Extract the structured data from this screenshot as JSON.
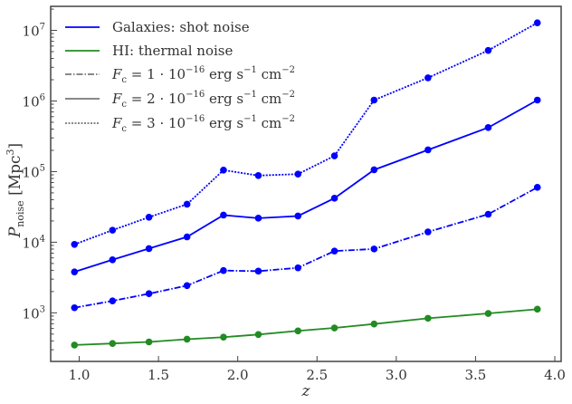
{
  "chart_data": {
    "type": "line",
    "xlabel": "z",
    "ylabel": {
      "main": "P",
      "sub": "noise",
      "unit": " [Mpc",
      "unit_exp": "3",
      "close": "]"
    },
    "xlim": [
      0.82,
      4.04
    ],
    "ylim": [
      205,
      21900000
    ],
    "yscale": "log",
    "grid": false,
    "legend_placement": "top-left",
    "x_ticks": [
      "1.0",
      "1.5",
      "2.0",
      "2.5",
      "3.0",
      "3.5",
      "4.0"
    ],
    "x_tick_values": [
      1.0,
      1.5,
      2.0,
      2.5,
      3.0,
      3.5,
      4.0
    ],
    "y_ticks": [
      {
        "base": "10",
        "exp": "3"
      },
      {
        "base": "10",
        "exp": "4"
      },
      {
        "base": "10",
        "exp": "5"
      },
      {
        "base": "10",
        "exp": "6"
      },
      {
        "base": "10",
        "exp": "7"
      }
    ],
    "y_tick_values": [
      1000,
      10000,
      100000,
      1000000,
      10000000
    ],
    "x": [
      0.97,
      1.21,
      1.44,
      1.68,
      1.91,
      2.13,
      2.38,
      2.61,
      2.86,
      3.2,
      3.58,
      3.89
    ],
    "series": [
      {
        "id": "hi",
        "color": "#228b22",
        "style": "solid",
        "values": [
          350,
          368,
          387,
          423,
          452,
          493,
          555,
          611,
          695,
          837,
          980,
          1125
        ]
      },
      {
        "id": "f1",
        "color": "#0000ff",
        "style": "dashdot",
        "values": [
          1180,
          1476,
          1866,
          2430,
          3970,
          3890,
          4340,
          7500,
          8020,
          14000,
          24900,
          59800
        ]
      },
      {
        "id": "f2",
        "color": "#0000ff",
        "style": "solid",
        "values": [
          3800,
          5640,
          8130,
          11900,
          24200,
          21900,
          23500,
          42000,
          106000,
          203000,
          420000,
          1030000
        ]
      },
      {
        "id": "f3",
        "color": "#0000ff",
        "style": "dotted",
        "values": [
          9320,
          14800,
          22600,
          34500,
          105000,
          87900,
          92200,
          167000,
          1030000,
          2130000,
          5200000,
          12800000
        ]
      }
    ],
    "legend": [
      {
        "color": "#0000ff",
        "style": "solid",
        "label": "Galaxies: shot noise"
      },
      {
        "color": "#228b22",
        "style": "solid",
        "label": "HI: thermal noise"
      },
      {
        "color": "#777777",
        "style": "dashdot",
        "math": {
          "f": "F",
          "sub": "c",
          "mid": " = 1 · 10",
          "e1": "−16",
          "u1": " erg s",
          "e2": "−1",
          "u2": " cm",
          "e3": "−2"
        }
      },
      {
        "color": "#777777",
        "style": "solid",
        "math": {
          "f": "F",
          "sub": "c",
          "mid": " = 2 · 10",
          "e1": "−16",
          "u1": " erg s",
          "e2": "−1",
          "u2": " cm",
          "e3": "−2"
        }
      },
      {
        "color": "#777777",
        "style": "dotted",
        "math": {
          "f": "F",
          "sub": "c",
          "mid": " = 3 · 10",
          "e1": "−16",
          "u1": " erg s",
          "e2": "−1",
          "u2": " cm",
          "e3": "−2"
        }
      }
    ]
  }
}
